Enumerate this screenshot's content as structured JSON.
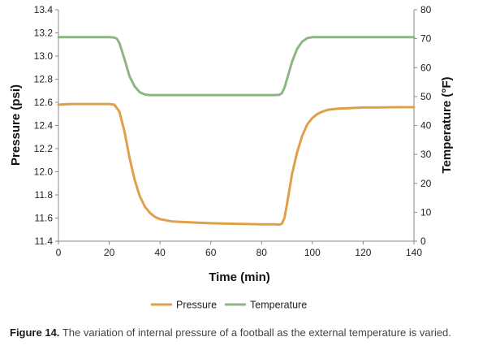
{
  "chart_data": {
    "type": "line",
    "xlabel": "Time (min)",
    "ylabel": "Pressure (psi)",
    "y2label": "Temperature (°F)",
    "xlim": [
      0,
      140
    ],
    "ylim": [
      11.4,
      13.4
    ],
    "y2lim": [
      0,
      80
    ],
    "xticks": [
      "0",
      "20",
      "40",
      "60",
      "80",
      "100",
      "120",
      "140"
    ],
    "yticks": [
      "11.4",
      "11.6",
      "11.8",
      "12.0",
      "12.2",
      "12.4",
      "12.6",
      "12.8",
      "13.0",
      "13.2",
      "13.4"
    ],
    "y2ticks": [
      "0",
      "10",
      "20",
      "30",
      "40",
      "50",
      "60",
      "70",
      "80"
    ],
    "legend_position": "bottom",
    "grid": false,
    "series": [
      {
        "name": "Pressure",
        "axis": "left",
        "color": "#E0A04A",
        "x": [
          0,
          5,
          10,
          15,
          20,
          22,
          24,
          26,
          28,
          30,
          32,
          34,
          36,
          38,
          40,
          45,
          50,
          55,
          60,
          65,
          70,
          75,
          80,
          85,
          87,
          88,
          89,
          90,
          91,
          92,
          94,
          96,
          98,
          100,
          102,
          104,
          106,
          110,
          115,
          120,
          125,
          130,
          135,
          140
        ],
        "values": [
          12.58,
          12.585,
          12.585,
          12.585,
          12.585,
          12.58,
          12.52,
          12.35,
          12.12,
          11.93,
          11.79,
          11.7,
          11.645,
          11.61,
          11.59,
          11.57,
          11.565,
          11.56,
          11.555,
          11.552,
          11.55,
          11.548,
          11.546,
          11.545,
          11.543,
          11.55,
          11.6,
          11.72,
          11.85,
          11.98,
          12.17,
          12.31,
          12.41,
          12.465,
          12.5,
          12.52,
          12.535,
          12.545,
          12.55,
          12.555,
          12.555,
          12.557,
          12.558,
          12.558
        ]
      },
      {
        "name": "Temperature",
        "axis": "right",
        "color": "#8FB587",
        "x": [
          0,
          5,
          10,
          15,
          20,
          22,
          23,
          24,
          26,
          28,
          30,
          32,
          34,
          36,
          38,
          40,
          50,
          60,
          70,
          80,
          85,
          87,
          88,
          89,
          90,
          92,
          94,
          96,
          98,
          100,
          102,
          104,
          110,
          120,
          130,
          140
        ],
        "values": [
          70.5,
          70.5,
          70.5,
          70.5,
          70.5,
          70.4,
          70,
          68.5,
          63,
          57,
          53.5,
          51.5,
          50.7,
          50.5,
          50.5,
          50.5,
          50.5,
          50.5,
          50.5,
          50.5,
          50.5,
          50.6,
          51.2,
          53,
          56,
          62,
          66.5,
          69,
          70.2,
          70.5,
          70.5,
          70.5,
          70.5,
          70.5,
          70.5,
          70.5
        ]
      }
    ]
  },
  "caption": {
    "label": "Figure 14.",
    "text": "The variation of internal pressure of a football as the external temperature is varied."
  }
}
